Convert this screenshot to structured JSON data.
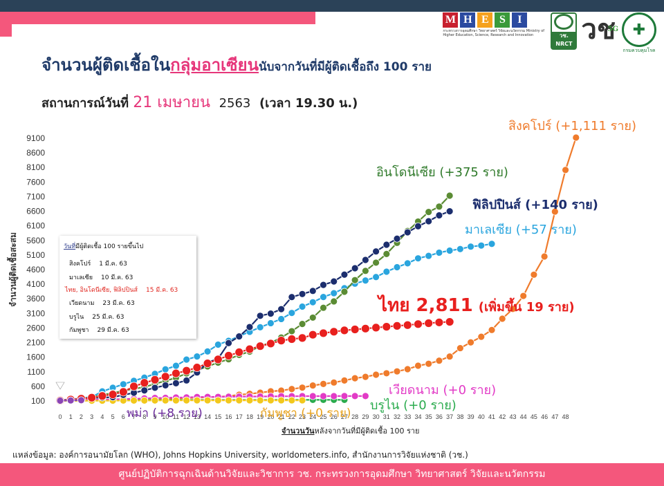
{
  "header": {
    "title_prefix": "จำนวนผู้ติดเชื้อใน",
    "title_highlight": "กลุ่มอาเซียน",
    "title_suffix": "นับจากวันที่มีผู้ติดเชื้อถึง 100 ราย",
    "situation_label": "สถานการณ์วันที่",
    "situation_date": "21 เมษายน",
    "situation_year": "2563",
    "situation_time": "(เวลา 19.30 น.)"
  },
  "logos": {
    "mhesi_letters": [
      "M",
      "H",
      "E",
      "S",
      "I"
    ],
    "mhesi_colors": [
      "#c8202f",
      "#2b4aa0",
      "#f5a11c",
      "#3a9a3a",
      "#2b4aa0"
    ],
    "mhesi_sub": "กระทรวงการอุดมศึกษา วิทยาศาสตร์ วิจัยและนวัตกรรม Ministry of Higher Education, Science, Research and Innovation",
    "nrct_label": "วช. NRCT",
    "v_mark": "วช",
    "v_5g": "5G",
    "ddc_label": "กรมควบคุมโรค"
  },
  "legend_box": {
    "header_u": "วันที่",
    "header_rest": "มีผู้ติดเชื้อ 100 รายขึ้นไป",
    "rows": [
      {
        "name": "สิงคโปร์",
        "date": "1 มี.ค. 63",
        "highlight": false
      },
      {
        "name": "มาเลเซีย",
        "date": "10 มี.ค. 63",
        "highlight": false
      },
      {
        "name": "ไทย, อินโดนีเซีย, ฟิลิปปินส์",
        "date": "15 มี.ค. 63",
        "highlight": true
      },
      {
        "name": "เวียดนาม",
        "date": "23 มี.ค. 63",
        "highlight": false
      },
      {
        "name": "บรูไน",
        "date": "25 มี.ค. 63",
        "highlight": false
      },
      {
        "name": "กัมพูชา",
        "date": "29 มี.ค. 63",
        "highlight": false
      }
    ]
  },
  "footer": {
    "source": "แหล่งข้อมูล: องค์การอนามัยโลก (WHO), Johns Hopkins University, worldometers.info, สำนักงานการวิจัยแห่งชาติ (วช.)",
    "org": "ศูนย์ปฏิบัติการฉุกเฉินด้านวิจัยและวิชาการ   วช.   กระทรวงการอุดมศึกษา วิทยาศาสตร์ วิจัยและนวัตกรรม"
  },
  "chart_data": {
    "type": "line",
    "xlabel_u": "จำนวนวัน",
    "xlabel_rest": "หลังจากวันที่มีผู้ติดเชื้อ 100 ราย",
    "ylabel": "จำนวนผู้ติดเชื้อสะสม",
    "xlim": [
      0,
      48
    ],
    "ylim": [
      100,
      9100
    ],
    "yticks": [
      100,
      600,
      1100,
      1600,
      2100,
      2600,
      3100,
      3600,
      4100,
      4600,
      5100,
      5600,
      6100,
      6600,
      7100,
      7600,
      8100,
      8600,
      9100
    ],
    "xticks": [
      0,
      1,
      2,
      3,
      4,
      5,
      6,
      7,
      8,
      9,
      10,
      11,
      12,
      13,
      14,
      15,
      16,
      17,
      18,
      19,
      20,
      21,
      22,
      23,
      24,
      25,
      26,
      27,
      28,
      29,
      30,
      31,
      32,
      33,
      34,
      35,
      36,
      37,
      38,
      39,
      40,
      41,
      42,
      43,
      44,
      45,
      46,
      47,
      48
    ],
    "grid": false,
    "series": [
      {
        "name": "สิงคโปร์",
        "label": "สิงคโปร์ (+1,111 ราย)",
        "color": "#ef7b2c",
        "label_color": "#ef7b2c",
        "values": [
          106,
          108,
          110,
          112,
          117,
          130,
          138,
          150,
          160,
          166,
          178,
          187,
          200,
          212,
          226,
          243,
          266,
          313,
          345,
          385,
          432,
          455,
          509,
          558,
          631,
          683,
          732,
          802,
          879,
          926,
          1000,
          1049,
          1114,
          1189,
          1309,
          1375,
          1481,
          1623,
          1910,
          2108,
          2299,
          2532,
          2918,
          3252,
          3699,
          4427,
          5050,
          6588,
          8014,
          9125
        ]
      },
      {
        "name": "อินโดนีเซีย",
        "label": "อินโดนีเซีย (+375 ราย)",
        "color": "#5b8c34",
        "label_color": "#2f7a2a",
        "values": [
          117,
          134,
          172,
          227,
          309,
          369,
          450,
          514,
          579,
          686,
          790,
          893,
          1046,
          1155,
          1285,
          1414,
          1528,
          1677,
          1790,
          1986,
          2092,
          2273,
          2491,
          2738,
          2956,
          3293,
          3512,
          3842,
          4241,
          4557,
          4839,
          5136,
          5516,
          5923,
          6248,
          6575,
          6760,
          7135
        ]
      },
      {
        "name": "ฟิลิปปินส์",
        "label": "ฟิลิปปินส์ (+140 ราย)",
        "color": "#1c2e6e",
        "label_color": "#1c2e6e",
        "values": [
          140,
          142,
          187,
          202,
          217,
          230,
          307,
          380,
          462,
          552,
          636,
          707,
          803,
          1075,
          1418,
          1546,
          2084,
          2311,
          2633,
          3018,
          3094,
          3246,
          3660,
          3764,
          3870,
          4076,
          4195,
          4428,
          4648,
          4932,
          5223,
          5453,
          5660,
          5878,
          6087,
          6259,
          6459,
          6599
        ]
      },
      {
        "name": "มาเลเซีย",
        "label": "มาเลเซีย (+57 ราย)",
        "color": "#2aa5de",
        "label_color": "#2aa5de",
        "values": [
          129,
          149,
          197,
          238,
          428,
          553,
          673,
          790,
          900,
          1030,
          1183,
          1306,
          1518,
          1624,
          1796,
          2031,
          2161,
          2320,
          2470,
          2626,
          2766,
          2908,
          3116,
          3333,
          3483,
          3662,
          3793,
          3963,
          4119,
          4228,
          4346,
          4530,
          4683,
          4817,
          4987,
          5072,
          5182,
          5251,
          5305,
          5389,
          5425,
          5482
        ]
      },
      {
        "name": "ไทย",
        "label": "ไทย 2,811",
        "label_extra": "(เพิ่มขึ้น 19 ราย)",
        "color": "#e8201e",
        "label_color": "#e8201e",
        "values": [
          114,
          147,
          177,
          212,
          272,
          322,
          411,
          599,
          721,
          827,
          934,
          1045,
          1136,
          1245,
          1388,
          1524,
          1651,
          1771,
          1875,
          1978,
          2067,
          2169,
          2220,
          2258,
          2369,
          2423,
          2473,
          2518,
          2551,
          2579,
          2613,
          2643,
          2672,
          2700,
          2733,
          2765,
          2792,
          2811
        ]
      },
      {
        "name": "เวียดนาม",
        "label": "เวียดนาม (+0 ราย)",
        "color": "#e23bc6",
        "label_color": "#e23bc6",
        "values": [
          113,
          123,
          134,
          141,
          148,
          153,
          169,
          174,
          188,
          203,
          207,
          218,
          222,
          237,
          240,
          241,
          245,
          249,
          251,
          255,
          257,
          262,
          262,
          265,
          265,
          266,
          267,
          268,
          268,
          268
        ]
      },
      {
        "name": "บรูไน",
        "label": "บรูไน (+0 ราย)",
        "color": "#2bab4e",
        "label_color": "#2bab4e",
        "values": [
          104,
          109,
          114,
          115,
          120,
          126,
          127,
          129,
          131,
          133,
          134,
          135,
          135,
          135,
          135,
          136,
          136,
          136,
          136,
          136,
          136,
          137,
          138,
          138,
          138,
          138,
          138,
          138
        ]
      },
      {
        "name": "กัมพูชา",
        "label": "กัมพูชา (+0 ราย)",
        "color": "#f2c81c",
        "label_color": "#e8a21c",
        "values": [
          103,
          107,
          109,
          109,
          110,
          112,
          114,
          114,
          115,
          117,
          119,
          119,
          120,
          122,
          122,
          122,
          122,
          122,
          122,
          122,
          122,
          122,
          122,
          122
        ]
      },
      {
        "name": "พม่า",
        "label": "พม่า (+8 ราย)",
        "color": "#8a45b5",
        "label_color": "#6a2a9a",
        "values": [
          111,
          119,
          127
        ]
      }
    ]
  }
}
